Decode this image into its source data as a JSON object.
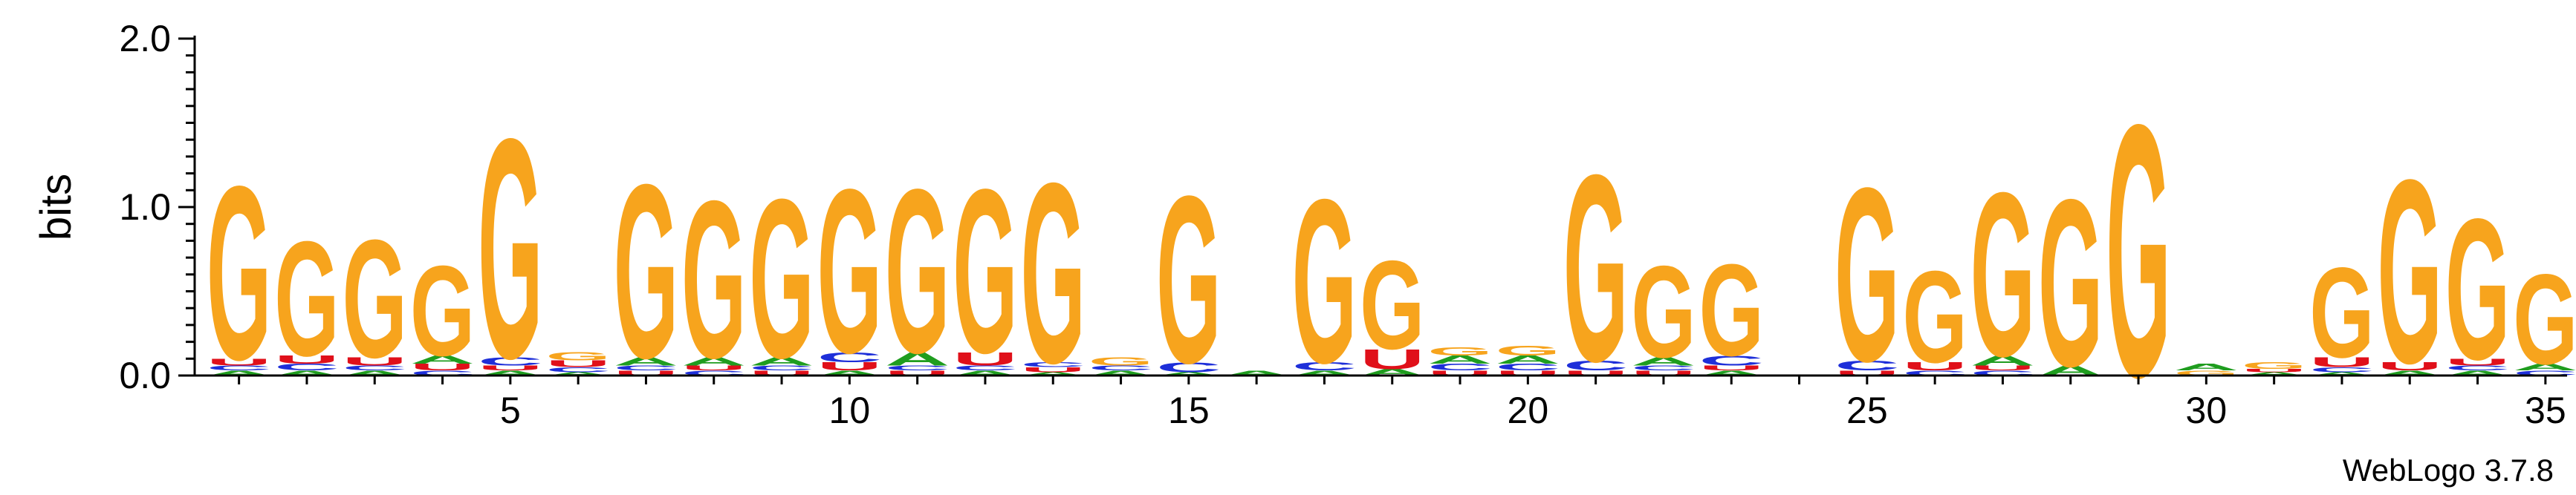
{
  "chart_data": {
    "type": "sequence_logo",
    "ylabel": "bits",
    "ylim": [
      0,
      2.0
    ],
    "y_ticks": [
      "0.0",
      "1.0",
      "2.0"
    ],
    "x_ticks": [
      5,
      10,
      15,
      20,
      25,
      30,
      35
    ],
    "positions": [
      1,
      35
    ],
    "colors": {
      "G": "#F7A41D",
      "A": "#1F9D1F",
      "C": "#1E2FD9",
      "U": "#E0101A"
    },
    "columns": [
      {
        "pos": 1,
        "stack": [
          [
            "A",
            0.03
          ],
          [
            "C",
            0.03
          ],
          [
            "U",
            0.04
          ],
          [
            "G",
            1.06
          ]
        ]
      },
      {
        "pos": 2,
        "stack": [
          [
            "A",
            0.03
          ],
          [
            "C",
            0.04
          ],
          [
            "U",
            0.05
          ],
          [
            "G",
            0.7
          ]
        ]
      },
      {
        "pos": 3,
        "stack": [
          [
            "A",
            0.03
          ],
          [
            "C",
            0.03
          ],
          [
            "U",
            0.05
          ],
          [
            "G",
            0.72
          ]
        ]
      },
      {
        "pos": 4,
        "stack": [
          [
            "C",
            0.03
          ],
          [
            "U",
            0.04
          ],
          [
            "A",
            0.05
          ],
          [
            "G",
            0.55
          ]
        ]
      },
      {
        "pos": 5,
        "stack": [
          [
            "A",
            0.03
          ],
          [
            "U",
            0.03
          ],
          [
            "C",
            0.05
          ],
          [
            "G",
            1.34
          ]
        ]
      },
      {
        "pos": 6,
        "stack": [
          [
            "A",
            0.02
          ],
          [
            "C",
            0.03
          ],
          [
            "U",
            0.04
          ],
          [
            "G",
            0.05
          ]
        ]
      },
      {
        "pos": 7,
        "stack": [
          [
            "U",
            0.03
          ],
          [
            "C",
            0.03
          ],
          [
            "A",
            0.05
          ],
          [
            "G",
            1.06
          ]
        ]
      },
      {
        "pos": 8,
        "stack": [
          [
            "C",
            0.03
          ],
          [
            "U",
            0.03
          ],
          [
            "A",
            0.05
          ],
          [
            "G",
            0.96
          ]
        ]
      },
      {
        "pos": 9,
        "stack": [
          [
            "U",
            0.03
          ],
          [
            "C",
            0.03
          ],
          [
            "A",
            0.05
          ],
          [
            "G",
            0.97
          ]
        ]
      },
      {
        "pos": 10,
        "stack": [
          [
            "A",
            0.03
          ],
          [
            "U",
            0.05
          ],
          [
            "C",
            0.06
          ],
          [
            "G",
            1.0
          ]
        ]
      },
      {
        "pos": 11,
        "stack": [
          [
            "U",
            0.03
          ],
          [
            "C",
            0.03
          ],
          [
            "A",
            0.08
          ],
          [
            "G",
            1.0
          ]
        ]
      },
      {
        "pos": 12,
        "stack": [
          [
            "A",
            0.03
          ],
          [
            "C",
            0.03
          ],
          [
            "U",
            0.08
          ],
          [
            "G",
            1.0
          ]
        ]
      },
      {
        "pos": 13,
        "stack": [
          [
            "A",
            0.02
          ],
          [
            "U",
            0.03
          ],
          [
            "C",
            0.03
          ],
          [
            "G",
            1.1
          ]
        ]
      },
      {
        "pos": 14,
        "stack": [
          [
            "A",
            0.03
          ],
          [
            "C",
            0.03
          ],
          [
            "G",
            0.05
          ]
        ]
      },
      {
        "pos": 15,
        "stack": [
          [
            "A",
            0.02
          ],
          [
            "C",
            0.06
          ],
          [
            "G",
            1.02
          ]
        ]
      },
      {
        "pos": 16,
        "stack": [
          [
            "A",
            0.03
          ]
        ]
      },
      {
        "pos": 17,
        "stack": [
          [
            "A",
            0.03
          ],
          [
            "C",
            0.05
          ],
          [
            "G",
            1.0
          ]
        ]
      },
      {
        "pos": 18,
        "stack": [
          [
            "A",
            0.04
          ],
          [
            "U",
            0.12
          ],
          [
            "G",
            0.54
          ]
        ]
      },
      {
        "pos": 19,
        "stack": [
          [
            "U",
            0.03
          ],
          [
            "C",
            0.04
          ],
          [
            "A",
            0.05
          ],
          [
            "G",
            0.05
          ]
        ]
      },
      {
        "pos": 20,
        "stack": [
          [
            "U",
            0.03
          ],
          [
            "C",
            0.04
          ],
          [
            "A",
            0.05
          ],
          [
            "G",
            0.06
          ]
        ]
      },
      {
        "pos": 21,
        "stack": [
          [
            "U",
            0.03
          ],
          [
            "C",
            0.06
          ],
          [
            "G",
            1.14
          ]
        ]
      },
      {
        "pos": 22,
        "stack": [
          [
            "U",
            0.03
          ],
          [
            "C",
            0.03
          ],
          [
            "A",
            0.05
          ],
          [
            "G",
            0.56
          ]
        ]
      },
      {
        "pos": 23,
        "stack": [
          [
            "A",
            0.03
          ],
          [
            "U",
            0.03
          ],
          [
            "C",
            0.06
          ],
          [
            "G",
            0.56
          ]
        ]
      },
      {
        "pos": 24,
        "stack": []
      },
      {
        "pos": 25,
        "stack": [
          [
            "U",
            0.03
          ],
          [
            "C",
            0.06
          ],
          [
            "G",
            1.06
          ]
        ]
      },
      {
        "pos": 26,
        "stack": [
          [
            "C",
            0.03
          ],
          [
            "U",
            0.05
          ],
          [
            "G",
            0.56
          ]
        ]
      },
      {
        "pos": 27,
        "stack": [
          [
            "C",
            0.03
          ],
          [
            "U",
            0.03
          ],
          [
            "A",
            0.06
          ],
          [
            "G",
            1.0
          ]
        ]
      },
      {
        "pos": 28,
        "stack": [
          [
            "A",
            0.06
          ],
          [
            "G",
            1.02
          ]
        ]
      },
      {
        "pos": 29,
        "stack": [
          [
            "G",
            1.54
          ]
        ]
      },
      {
        "pos": 30,
        "stack": [
          [
            "G",
            0.03
          ],
          [
            "A",
            0.04
          ]
        ]
      },
      {
        "pos": 31,
        "stack": [
          [
            "A",
            0.02
          ],
          [
            "U",
            0.02
          ],
          [
            "G",
            0.04
          ]
        ]
      },
      {
        "pos": 32,
        "stack": [
          [
            "A",
            0.02
          ],
          [
            "C",
            0.03
          ],
          [
            "U",
            0.06
          ],
          [
            "G",
            0.55
          ]
        ]
      },
      {
        "pos": 33,
        "stack": [
          [
            "A",
            0.03
          ],
          [
            "U",
            0.05
          ],
          [
            "G",
            1.12
          ]
        ]
      },
      {
        "pos": 34,
        "stack": [
          [
            "A",
            0.03
          ],
          [
            "C",
            0.03
          ],
          [
            "U",
            0.04
          ],
          [
            "G",
            0.86
          ]
        ]
      },
      {
        "pos": 35,
        "stack": [
          [
            "C",
            0.03
          ],
          [
            "A",
            0.04
          ],
          [
            "G",
            0.55
          ]
        ]
      }
    ]
  },
  "footer": {
    "version_label": "WebLogo 3.7.8"
  }
}
